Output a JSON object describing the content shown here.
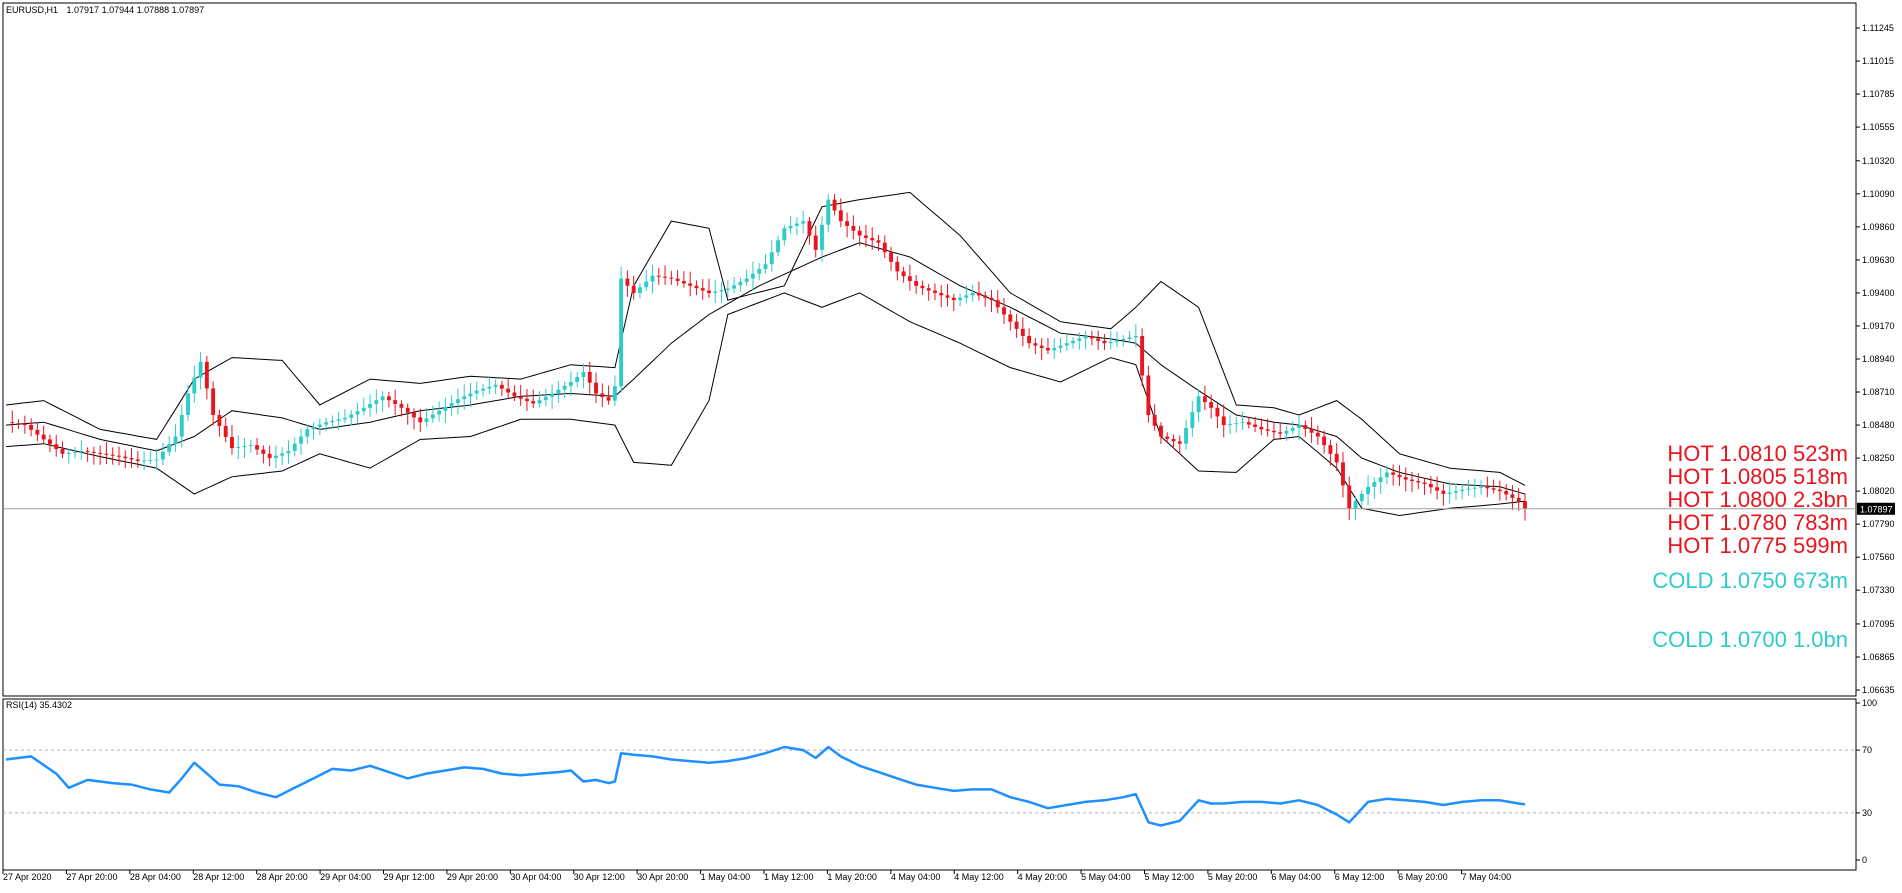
{
  "header": {
    "symbol": "EURUSD,H1",
    "ohlc": "1.07917 1.07944 1.07888 1.07897"
  },
  "rsi_header": {
    "label": "RSI(14) 35.4302"
  },
  "colors": {
    "bull": "#2ecbcb",
    "bear": "#e8141e",
    "band": "#000000",
    "rsi": "#1e90ff",
    "hot": "#e8141e",
    "cold": "#2ecbcb"
  },
  "levels": {
    "hot": [
      {
        "text": "HOT 1.0810 523m"
      },
      {
        "text": "HOT 1.0805 518m"
      },
      {
        "text": "HOT 1.0800 2.3bn"
      },
      {
        "text": "HOT 1.0780 783m"
      },
      {
        "text": "HOT 1.0775 599m"
      }
    ],
    "cold": [
      {
        "text": "COLD 1.0750 673m"
      },
      {
        "text": "COLD 1.0700 1.0bn"
      }
    ]
  },
  "chart_data": [
    {
      "type": "candlestick",
      "symbol": "EURUSD",
      "timeframe": "H1",
      "current_price": 1.07897,
      "current_price_label": "1.07897",
      "ylim": [
        1.06635,
        1.11245
      ],
      "y_ticks": [
        "1.11245",
        "1.11015",
        "1.10785",
        "1.10555",
        "1.10320",
        "1.10090",
        "1.09860",
        "1.09630",
        "1.09400",
        "1.09170",
        "1.08940",
        "1.08710",
        "1.08480",
        "1.08250",
        "1.08020",
        "1.07790",
        "1.07560",
        "1.07330",
        "1.07095",
        "1.06865",
        "1.06635"
      ],
      "x_ticks": [
        "27 Apr 2020",
        "27 Apr 20:00",
        "28 Apr 04:00",
        "28 Apr 12:00",
        "28 Apr 20:00",
        "29 Apr 04:00",
        "29 Apr 12:00",
        "29 Apr 20:00",
        "30 Apr 04:00",
        "30 Apr 12:00",
        "30 Apr 20:00",
        "1 May 04:00",
        "1 May 12:00",
        "1 May 20:00",
        "4 May 04:00",
        "4 May 12:00",
        "4 May 20:00",
        "5 May 04:00",
        "5 May 12:00",
        "5 May 20:00",
        "6 May 04:00",
        "6 May 12:00",
        "6 May 20:00",
        "7 May 04:00"
      ],
      "close_path": [
        [
          0,
          1.085
        ],
        [
          3,
          1.0848
        ],
        [
          6,
          1.0838
        ],
        [
          9,
          1.0828
        ],
        [
          12,
          1.083
        ],
        [
          15,
          1.0828
        ],
        [
          18,
          1.0826
        ],
        [
          21,
          1.0823
        ],
        [
          24,
          1.0824
        ],
        [
          27,
          1.084
        ],
        [
          29,
          1.087
        ],
        [
          31,
          1.0892
        ],
        [
          33,
          1.0855
        ],
        [
          36,
          1.0832
        ],
        [
          39,
          1.0834
        ],
        [
          42,
          1.0825
        ],
        [
          45,
          1.083
        ],
        [
          48,
          1.0845
        ],
        [
          51,
          1.085
        ],
        [
          54,
          1.0853
        ],
        [
          57,
          1.086
        ],
        [
          60,
          1.0868
        ],
        [
          63,
          1.086
        ],
        [
          66,
          1.085
        ],
        [
          69,
          1.0858
        ],
        [
          72,
          1.0866
        ],
        [
          75,
          1.0872
        ],
        [
          78,
          1.0876
        ],
        [
          81,
          1.0868
        ],
        [
          84,
          1.0863
        ],
        [
          87,
          1.087
        ],
        [
          90,
          1.0878
        ],
        [
          92,
          1.0885
        ],
        [
          94,
          1.087
        ],
        [
          96,
          1.0865
        ],
        [
          97,
          1.0875
        ],
        [
          98,
          1.095
        ],
        [
          100,
          1.094
        ],
        [
          103,
          1.0952
        ],
        [
          106,
          1.095
        ],
        [
          109,
          1.0945
        ],
        [
          112,
          1.094
        ],
        [
          115,
          1.0943
        ],
        [
          118,
          1.095
        ],
        [
          121,
          1.096
        ],
        [
          124,
          1.0985
        ],
        [
          127,
          1.099
        ],
        [
          129,
          1.097
        ],
        [
          131,
          1.1005
        ],
        [
          133,
          1.099
        ],
        [
          136,
          1.098
        ],
        [
          139,
          1.0975
        ],
        [
          142,
          1.0955
        ],
        [
          145,
          1.0945
        ],
        [
          148,
          1.094
        ],
        [
          151,
          1.0935
        ],
        [
          154,
          1.094
        ],
        [
          157,
          1.0935
        ],
        [
          160,
          1.092
        ],
        [
          163,
          1.0905
        ],
        [
          166,
          1.09
        ],
        [
          169,
          1.0905
        ],
        [
          172,
          1.091
        ],
        [
          175,
          1.0905
        ],
        [
          178,
          1.0908
        ],
        [
          180,
          1.091
        ],
        [
          182,
          1.0855
        ],
        [
          184,
          1.084
        ],
        [
          187,
          1.0835
        ],
        [
          190,
          1.0868
        ],
        [
          192,
          1.086
        ],
        [
          194,
          1.0848
        ],
        [
          197,
          1.085
        ],
        [
          200,
          1.0845
        ],
        [
          203,
          1.0842
        ],
        [
          206,
          1.0848
        ],
        [
          209,
          1.084
        ],
        [
          212,
          1.0822
        ],
        [
          214,
          1.079
        ],
        [
          217,
          1.0805
        ],
        [
          220,
          1.0815
        ],
        [
          223,
          1.081
        ],
        [
          226,
          1.0807
        ],
        [
          229,
          1.08
        ],
        [
          232,
          1.0803
        ],
        [
          235,
          1.0805
        ],
        [
          238,
          1.0802
        ],
        [
          241,
          1.0795
        ],
        [
          242,
          1.07897
        ]
      ],
      "bollinger": {
        "period": 20,
        "upper": [
          [
            0,
            1.0862
          ],
          [
            6,
            1.0865
          ],
          [
            15,
            1.0845
          ],
          [
            24,
            1.0838
          ],
          [
            30,
            1.088
          ],
          [
            36,
            1.0895
          ],
          [
            44,
            1.0893
          ],
          [
            50,
            1.0862
          ],
          [
            58,
            1.088
          ],
          [
            66,
            1.0877
          ],
          [
            74,
            1.0882
          ],
          [
            82,
            1.088
          ],
          [
            90,
            1.089
          ],
          [
            97,
            1.0888
          ],
          [
            100,
            1.0945
          ],
          [
            106,
            1.099
          ],
          [
            112,
            1.0985
          ],
          [
            115,
            1.0935
          ],
          [
            124,
            1.0945
          ],
          [
            130,
            1.1
          ],
          [
            136,
            1.1005
          ],
          [
            144,
            1.101
          ],
          [
            152,
            1.098
          ],
          [
            160,
            1.094
          ],
          [
            168,
            1.092
          ],
          [
            176,
            1.0915
          ],
          [
            180,
            1.093
          ],
          [
            184,
            1.0948
          ],
          [
            190,
            1.093
          ],
          [
            196,
            1.0862
          ],
          [
            202,
            1.086
          ],
          [
            206,
            1.0855
          ],
          [
            212,
            1.0865
          ],
          [
            216,
            1.0852
          ],
          [
            222,
            1.0828
          ],
          [
            230,
            1.0818
          ],
          [
            238,
            1.0815
          ],
          [
            242,
            1.0806
          ]
        ],
        "middle": [
          [
            0,
            1.0848
          ],
          [
            6,
            1.085
          ],
          [
            15,
            1.0838
          ],
          [
            24,
            1.083
          ],
          [
            30,
            1.084
          ],
          [
            36,
            1.0858
          ],
          [
            44,
            1.0853
          ],
          [
            50,
            1.0845
          ],
          [
            58,
            1.085
          ],
          [
            66,
            1.0858
          ],
          [
            74,
            1.0862
          ],
          [
            82,
            1.0868
          ],
          [
            90,
            1.087
          ],
          [
            97,
            1.0868
          ],
          [
            100,
            1.088
          ],
          [
            106,
            1.0905
          ],
          [
            112,
            1.0925
          ],
          [
            120,
            1.0945
          ],
          [
            130,
            1.0965
          ],
          [
            136,
            1.0975
          ],
          [
            144,
            1.0965
          ],
          [
            152,
            1.0945
          ],
          [
            160,
            1.093
          ],
          [
            168,
            1.0912
          ],
          [
            176,
            1.0908
          ],
          [
            180,
            1.0905
          ],
          [
            184,
            1.089
          ],
          [
            190,
            1.0872
          ],
          [
            196,
            1.0855
          ],
          [
            202,
            1.085
          ],
          [
            206,
            1.0848
          ],
          [
            212,
            1.084
          ],
          [
            216,
            1.0825
          ],
          [
            222,
            1.0815
          ],
          [
            230,
            1.0807
          ],
          [
            238,
            1.0805
          ],
          [
            242,
            1.08
          ]
        ],
        "lower": [
          [
            0,
            1.0833
          ],
          [
            6,
            1.0835
          ],
          [
            15,
            1.0826
          ],
          [
            24,
            1.0818
          ],
          [
            30,
            1.08
          ],
          [
            36,
            1.0812
          ],
          [
            44,
            1.0816
          ],
          [
            50,
            1.0828
          ],
          [
            58,
            1.0818
          ],
          [
            66,
            1.0838
          ],
          [
            74,
            1.084
          ],
          [
            82,
            1.0852
          ],
          [
            90,
            1.0852
          ],
          [
            97,
            1.0848
          ],
          [
            100,
            1.0822
          ],
          [
            106,
            1.082
          ],
          [
            112,
            1.0865
          ],
          [
            115,
            1.0925
          ],
          [
            124,
            1.094
          ],
          [
            130,
            1.093
          ],
          [
            136,
            1.094
          ],
          [
            144,
            1.092
          ],
          [
            152,
            1.0905
          ],
          [
            160,
            1.0888
          ],
          [
            168,
            1.0878
          ],
          [
            176,
            1.0895
          ],
          [
            180,
            1.089
          ],
          [
            184,
            1.084
          ],
          [
            190,
            1.0816
          ],
          [
            196,
            1.0815
          ],
          [
            202,
            1.0838
          ],
          [
            206,
            1.084
          ],
          [
            212,
            1.0818
          ],
          [
            216,
            1.079
          ],
          [
            222,
            1.0785
          ],
          [
            230,
            1.079
          ],
          [
            238,
            1.0793
          ],
          [
            242,
            1.0795
          ]
        ]
      }
    },
    {
      "type": "line",
      "name": "RSI(14)",
      "last_value": 35.4302,
      "ylim": [
        0,
        100
      ],
      "y_ticks": [
        "100",
        "70",
        "30",
        "0"
      ],
      "guides": [
        70,
        30
      ],
      "points": [
        [
          0,
          64
        ],
        [
          4,
          66
        ],
        [
          8,
          55
        ],
        [
          10,
          46
        ],
        [
          13,
          51
        ],
        [
          17,
          49
        ],
        [
          20,
          48
        ],
        [
          23,
          45
        ],
        [
          26,
          43
        ],
        [
          28,
          52
        ],
        [
          30,
          62
        ],
        [
          32,
          55
        ],
        [
          34,
          48
        ],
        [
          37,
          47
        ],
        [
          40,
          43
        ],
        [
          43,
          40
        ],
        [
          46,
          46
        ],
        [
          49,
          52
        ],
        [
          52,
          58
        ],
        [
          55,
          57
        ],
        [
          58,
          60
        ],
        [
          61,
          56
        ],
        [
          64,
          52
        ],
        [
          67,
          55
        ],
        [
          70,
          57
        ],
        [
          73,
          59
        ],
        [
          76,
          58
        ],
        [
          79,
          55
        ],
        [
          82,
          54
        ],
        [
          85,
          55
        ],
        [
          88,
          56
        ],
        [
          90,
          57
        ],
        [
          92,
          50
        ],
        [
          94,
          51
        ],
        [
          96,
          49
        ],
        [
          97,
          50
        ],
        [
          98,
          68
        ],
        [
          100,
          67
        ],
        [
          103,
          66
        ],
        [
          106,
          64
        ],
        [
          109,
          63
        ],
        [
          112,
          62
        ],
        [
          115,
          63
        ],
        [
          118,
          65
        ],
        [
          121,
          68
        ],
        [
          124,
          72
        ],
        [
          127,
          70
        ],
        [
          129,
          65
        ],
        [
          131,
          72
        ],
        [
          133,
          66
        ],
        [
          136,
          60
        ],
        [
          139,
          56
        ],
        [
          142,
          52
        ],
        [
          145,
          48
        ],
        [
          148,
          46
        ],
        [
          151,
          44
        ],
        [
          154,
          45
        ],
        [
          157,
          45
        ],
        [
          160,
          40
        ],
        [
          163,
          37
        ],
        [
          166,
          33
        ],
        [
          169,
          35
        ],
        [
          172,
          37
        ],
        [
          175,
          38
        ],
        [
          178,
          40
        ],
        [
          180,
          42
        ],
        [
          182,
          24
        ],
        [
          184,
          22
        ],
        [
          187,
          25
        ],
        [
          190,
          38
        ],
        [
          192,
          36
        ],
        [
          194,
          36
        ],
        [
          197,
          37
        ],
        [
          200,
          37
        ],
        [
          203,
          36
        ],
        [
          206,
          38
        ],
        [
          209,
          35
        ],
        [
          212,
          29
        ],
        [
          214,
          24
        ],
        [
          217,
          37
        ],
        [
          220,
          39
        ],
        [
          223,
          38
        ],
        [
          226,
          37
        ],
        [
          229,
          35
        ],
        [
          232,
          37
        ],
        [
          235,
          38
        ],
        [
          238,
          38
        ],
        [
          241,
          36
        ],
        [
          242,
          35.4
        ]
      ]
    }
  ]
}
